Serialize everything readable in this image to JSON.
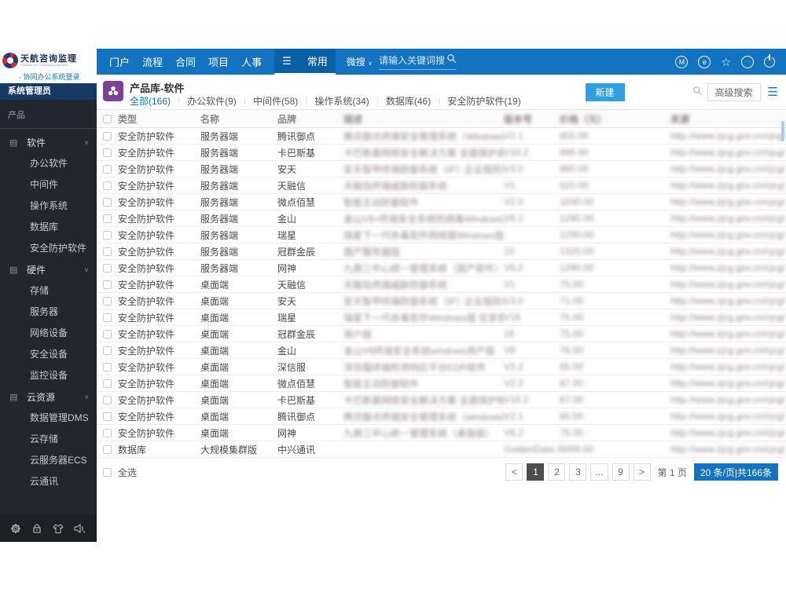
{
  "brand": {
    "name": "天航咨询监理",
    "tagline": "Tianhang Info Consulting&Supervision",
    "login_link": "· 协同办公系统登录"
  },
  "topnav": {
    "items": [
      "门户",
      "流程",
      "合同",
      "项目",
      "人事"
    ],
    "hamburger": "☰",
    "active_item": "常用",
    "search_scope": "微搜",
    "scope_caret": "∨",
    "search_placeholder": "请输入关键词搜",
    "right_icons": [
      "m-badge-icon",
      "message-icon",
      "favorite-star-icon",
      "more-icon",
      "power-icon"
    ],
    "m_glyph": "M",
    "message_glyph": "e",
    "star_glyph": "☆",
    "more_glyph": "···"
  },
  "sidebar": {
    "role": "系统管理员",
    "section": "产品",
    "group_icon": "▤",
    "chevron": "∨",
    "groups": [
      {
        "label": "软件",
        "items": [
          "办公软件",
          "中间件",
          "操作系统",
          "数据库",
          "安全防护软件"
        ]
      },
      {
        "label": "硬件",
        "items": [
          "存储",
          "服务器",
          "网络设备",
          "安全设备",
          "监控设备"
        ]
      },
      {
        "label": "云资源",
        "items": [
          "数据管理DMS",
          "云存储",
          "云服务器ECS",
          "云通讯"
        ]
      }
    ],
    "footer_icons": [
      "settings-gear-icon",
      "lock-icon",
      "theme-shirt-icon",
      "volume-icon"
    ]
  },
  "content": {
    "title": "产品库-软件",
    "tabs": [
      {
        "label": "全部(166)",
        "active": true
      },
      {
        "label": "办公软件(9)",
        "active": false
      },
      {
        "label": "中间件(58)",
        "active": false
      },
      {
        "label": "操作系统(34)",
        "active": false
      },
      {
        "label": "数据库(46)",
        "active": false
      },
      {
        "label": "安全防护软件(19)",
        "active": false
      }
    ],
    "new_button": "新建",
    "advanced_search": "高级搜索"
  },
  "table": {
    "columns": [
      {
        "label": "类型",
        "blurred": false
      },
      {
        "label": "名称",
        "blurred": false
      },
      {
        "label": "品牌",
        "blurred": false
      },
      {
        "label": "描述",
        "blurred": true
      },
      {
        "label": "版本号",
        "blurred": true
      },
      {
        "label": "价格（元）",
        "blurred": true
      },
      {
        "label": "来源",
        "blurred": true
      }
    ],
    "rows": [
      {
        "type": "安全防护软件",
        "name": "服务器端",
        "brand": "腾讯御点",
        "desc": "腾讯御点终端安全管理系统（Windows版）",
        "version": "V2.1",
        "price": "855.00",
        "source": "http://www.zjcg.gov.cn/cjcg/"
      },
      {
        "type": "安全防护软件",
        "name": "服务器端",
        "brand": "卡巴斯基",
        "desc": "卡巴斯基网络安全解决方案 全面保护高级版（KL4869）...",
        "version": "V10.2",
        "price": "895.00",
        "source": "http://www.zjcg.gov.cn/cjcg/"
      },
      {
        "type": "安全防护软件",
        "name": "服务器端",
        "brand": "安天",
        "desc": "安天智甲终端防御系统（IP）·企业版防御系统",
        "version": "V3.0",
        "price": "880.00",
        "source": "http://www.zjcg.gov.cn/cjcg/"
      },
      {
        "type": "安全防护软件",
        "name": "服务器端",
        "brand": "天融信",
        "desc": "天融信终端威胁防御系统",
        "version": "V1",
        "price": "520.00",
        "source": "http://www.zjcg.gov.cn/cjcg/"
      },
      {
        "type": "安全防护软件",
        "name": "服务器端",
        "brand": "微点佰慧",
        "desc": "智能主动防御软件",
        "version": "V2.0",
        "price": "1030.00",
        "source": "http://www.zjcg.gov.cn/cjcg/"
      },
      {
        "type": "安全防护软件",
        "name": "服务器端",
        "brand": "金山",
        "desc": "金山V8+终端安全系统防病毒Windows服务器版",
        "version": "V6.2",
        "price": "1290.00",
        "source": "http://www.zjcg.gov.cn/cjcg/"
      },
      {
        "type": "安全防护软件",
        "name": "服务器端",
        "brand": "瑞星",
        "desc": "瑞星下一代杀毒软件网络版Windows版 优享授权版",
        "version": "",
        "price": "1290.00",
        "source": "http://www.zjcg.gov.cn/cjcg/"
      },
      {
        "type": "安全防护软件",
        "name": "服务器端",
        "brand": "冠群金辰",
        "desc": "国产服务器版",
        "version": "10",
        "price": "1320.00",
        "source": "http://www.zjcg.gov.cn/cjcg/"
      },
      {
        "type": "安全防护软件",
        "name": "服务器端",
        "brand": "网神",
        "desc": "九鼎三中心统一管理系统（国产软件）",
        "version": "V6.2",
        "price": "1290.00",
        "source": "http://www.zjcg.gov.cn/cjcg/"
      },
      {
        "type": "安全防护软件",
        "name": "桌面端",
        "brand": "天融信",
        "desc": "天融信终端威胁防御系统",
        "version": "V1",
        "price": "75.00",
        "source": "http://www.zjcg.gov.cn/cjcg/"
      },
      {
        "type": "安全防护软件",
        "name": "桌面端",
        "brand": "安天",
        "desc": "安天智甲终端防御系统（IP）·企业版防御系统",
        "version": "V3.0",
        "price": "71.00",
        "source": "http://www.zjcg.gov.cn/cjcg/"
      },
      {
        "type": "安全防护软件",
        "name": "桌面端",
        "brand": "瑞星",
        "desc": "瑞星下一代杀毒软件Windows版 优享授权版",
        "version": "V16",
        "price": "75.00",
        "source": "http://www.zjcg.gov.cn/cjcg/"
      },
      {
        "type": "安全防护软件",
        "name": "桌面端",
        "brand": "冠群金辰",
        "desc": "用户版",
        "version": "16",
        "price": "75.00",
        "source": "http://www.zjcg.gov.cn/cjcg/"
      },
      {
        "type": "安全防护软件",
        "name": "桌面端",
        "brand": "金山",
        "desc": "金山V8终端安全系统windows用户版",
        "version": "V8",
        "price": "76.00",
        "source": "http://www.zjcg.gov.cn/cjcg/"
      },
      {
        "type": "安全防护软件",
        "name": "桌面端",
        "brand": "深信服",
        "desc": "深信服终端检测响应平台EDR软件",
        "version": "V3.2",
        "price": "65.00",
        "source": "http://www.zjcg.gov.cn/cjcg/"
      },
      {
        "type": "安全防护软件",
        "name": "桌面端",
        "brand": "微点佰慧",
        "desc": "智能主动防御软件",
        "version": "V2.2",
        "price": "87.00",
        "source": "http://www.zjcg.gov.cn/cjcg/"
      },
      {
        "type": "安全防护软件",
        "name": "桌面端",
        "brand": "卡巴斯基",
        "desc": "卡巴斯基网络安全解决方案 全面保护标准版（KL48）...",
        "version": "V10.2",
        "price": "67.00",
        "source": "http://www.zjcg.gov.cn/cjcg/"
      },
      {
        "type": "安全防护软件",
        "name": "桌面端",
        "brand": "腾讯御点",
        "desc": "腾讯御点终端安全管理系统（windows版）V2.1",
        "version": "V2.1",
        "price": "65.00",
        "source": "http://www.zjcg.gov.cn/cjcg/"
      },
      {
        "type": "安全防护软件",
        "name": "桌面端",
        "brand": "网神",
        "desc": "九鼎三中心统一管理系统（桌面版）",
        "version": "V6.2",
        "price": "75.00",
        "source": "http://www.zjcg.gov.cn/cjcg/"
      },
      {
        "type": "数据库",
        "name": "大规模集群版",
        "brand": "中兴通讯",
        "desc": "",
        "version": "GoldenData s...",
        "price": "5000.00",
        "source": "http://www.zjcg.gov.cn/cjcg/"
      }
    ],
    "select_all": "全选"
  },
  "pagination": {
    "prev": "<",
    "pages": [
      "1",
      "2",
      "3",
      "...",
      "9"
    ],
    "active_page": "1",
    "next": ">",
    "jump_label": "第 1 页",
    "page_size_info": "20 条/页|共166条"
  },
  "colors": {
    "nav_blue": "#1273c1",
    "nav_dark_blue": "#0b5fa4",
    "sidebar_bg": "#23272d",
    "role_strip": "#173a64",
    "accent_blue": "#2f9fdf",
    "purple_icon": "#7d3f98",
    "active_page_bg": "#4d4d4d"
  }
}
